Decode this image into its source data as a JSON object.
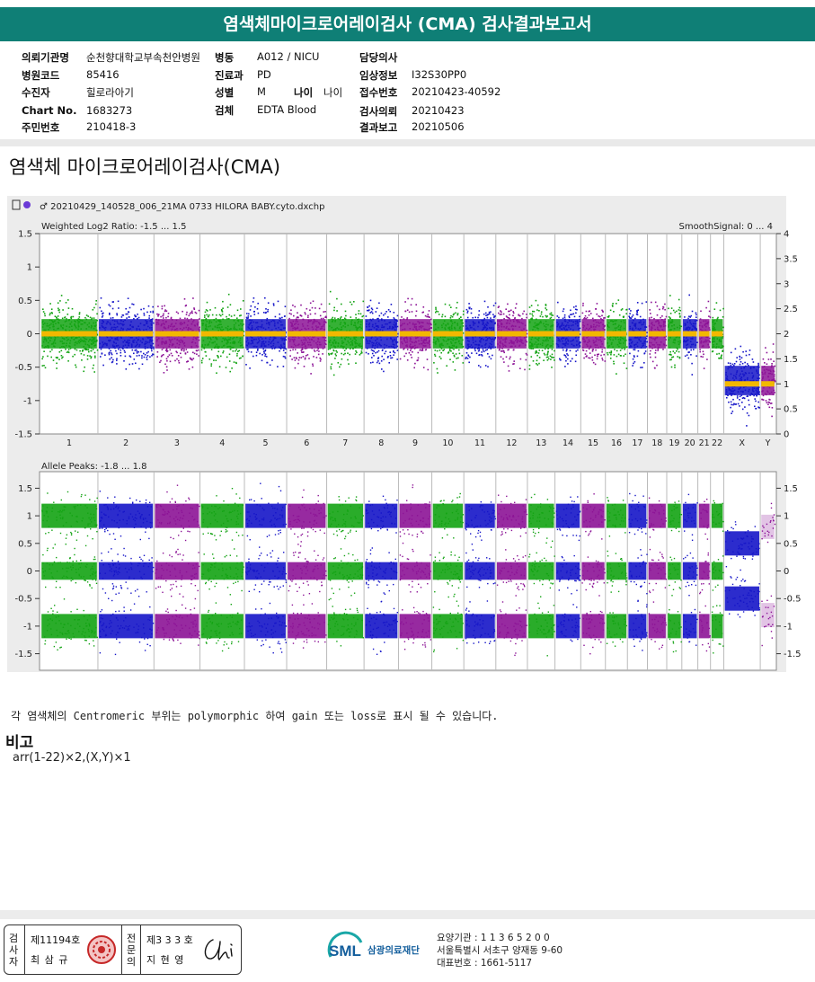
{
  "report": {
    "title": "염색체마이크로어레이검사 (CMA) 검사결과보고서",
    "section_title": "염색체 마이크로어레이검사(CMA)",
    "info": {
      "hospital_label": "의뢰기관명",
      "hospital_value": "순천향대학교부속천안병원",
      "ward_label": "병동",
      "ward_value": "A012 / NICU",
      "doctor_label": "담당의사",
      "doctor_value": "",
      "code_label": "병원코드",
      "code_value": "85416",
      "dept_label": "진료과",
      "dept_value": "PD",
      "clinical_label": "임상정보",
      "clinical_value": "I32S30PP0",
      "patient_label": "수진자",
      "patient_value": "힐로라아기",
      "sex_label": "성별",
      "sex_value": "M",
      "age_label": "나이",
      "age_value": "나이",
      "receipt_label": "접수번호",
      "receipt_value": "20210423-40592",
      "chart_label": "Chart No.",
      "chart_value": "1683273",
      "specimen_label": "검체",
      "specimen_value": "EDTA Blood",
      "request_label": "검사의뢰",
      "request_value": "20210423",
      "rrn_label": "주민번호",
      "rrn_value": "210418-3",
      "report_label": "결과보고",
      "report_value": "20210506"
    },
    "note": "각 염색체의 Centromeric 부위는 polymorphic 하여 gain 또는 loss로 표시 될 수 있습니다.",
    "remark_heading": "비고",
    "remark_text": "arr(1-22)×2,(X,Y)×1"
  },
  "chart_data": {
    "type": "scatter",
    "filename": "20210429_140528_006_21MA 0733 HILORA BABY.cyto.dxchp",
    "panels": [
      {
        "name": "Weighted Log2 Ratio",
        "title": "Weighted Log2 Ratio: -1.5 ... 1.5",
        "right_title": "SmoothSignal: 0 ... 4",
        "ylim": [
          -1.5,
          1.5
        ],
        "yticks": [
          "1.5",
          "1",
          "0.5",
          "0",
          "-0.5",
          "-1",
          "-1.5"
        ],
        "right_ylim": [
          0,
          4
        ],
        "right_yticks": [
          "4",
          "3.5",
          "3",
          "2.5",
          "2",
          "1.5",
          "1",
          "0.5",
          "0"
        ],
        "autosome_log2": 0,
        "sex_chrom_log2": -0.7,
        "smooth_signal_autosome": 2,
        "smooth_signal_sex": 1
      },
      {
        "name": "Allele Peaks",
        "title": "Allele Peaks: -1.8 ... 1.8",
        "ylim": [
          -1.8,
          1.8
        ],
        "yticks": [
          "1.5",
          "1",
          "0.5",
          "0",
          "-0.5",
          "-1",
          "-1.5"
        ],
        "right_yticks": [
          "1.5",
          "1",
          "0.5",
          "0",
          "-0.5",
          "-1",
          "-1.5"
        ],
        "autosome_peaks": [
          1,
          0,
          -1
        ],
        "x_peaks": [
          0.5,
          -0.5
        ]
      }
    ],
    "chromosomes": [
      {
        "label": "1",
        "size": 249,
        "color": "green"
      },
      {
        "label": "2",
        "size": 243,
        "color": "blue"
      },
      {
        "label": "3",
        "size": 198,
        "color": "purple"
      },
      {
        "label": "4",
        "size": 191,
        "color": "green"
      },
      {
        "label": "5",
        "size": 181,
        "color": "blue"
      },
      {
        "label": "6",
        "size": 171,
        "color": "purple"
      },
      {
        "label": "7",
        "size": 159,
        "color": "green"
      },
      {
        "label": "8",
        "size": 146,
        "color": "blue"
      },
      {
        "label": "9",
        "size": 141,
        "color": "purple"
      },
      {
        "label": "10",
        "size": 135,
        "color": "green"
      },
      {
        "label": "11",
        "size": 135,
        "color": "blue"
      },
      {
        "label": "12",
        "size": 133,
        "color": "purple"
      },
      {
        "label": "13",
        "size": 115,
        "color": "green"
      },
      {
        "label": "14",
        "size": 107,
        "color": "blue"
      },
      {
        "label": "15",
        "size": 102,
        "color": "purple"
      },
      {
        "label": "16",
        "size": 90,
        "color": "green"
      },
      {
        "label": "17",
        "size": 81,
        "color": "blue"
      },
      {
        "label": "18",
        "size": 78,
        "color": "purple"
      },
      {
        "label": "19",
        "size": 59,
        "color": "green"
      },
      {
        "label": "20",
        "size": 63,
        "color": "blue"
      },
      {
        "label": "21",
        "size": 48,
        "color": "purple"
      },
      {
        "label": "22",
        "size": 51,
        "color": "green"
      },
      {
        "label": "X",
        "size": 155,
        "color": "blue"
      },
      {
        "label": "Y",
        "size": 59,
        "color": "purple"
      }
    ],
    "colors": {
      "green": "#13a313",
      "blue": "#1515c8",
      "purple": "#8c1396",
      "smooth": "#f2b800"
    }
  },
  "footer": {
    "exam_vert": [
      "검",
      "사",
      "자"
    ],
    "exam_no": "제11194호",
    "exam_name": "최 삼 규",
    "spec_vert": [
      "전",
      "문",
      "의"
    ],
    "spec_no": "제3 3 3 호",
    "spec_name": "지 현 영",
    "org_logo": "SML",
    "org_name": "삼광의료재단",
    "line1": "요양기관 : 1 1 3 6 5 2 0 0",
    "line2": "서울특별시 서초구 양재동 9-60",
    "line3": "대표번호 : 1661-5117"
  }
}
